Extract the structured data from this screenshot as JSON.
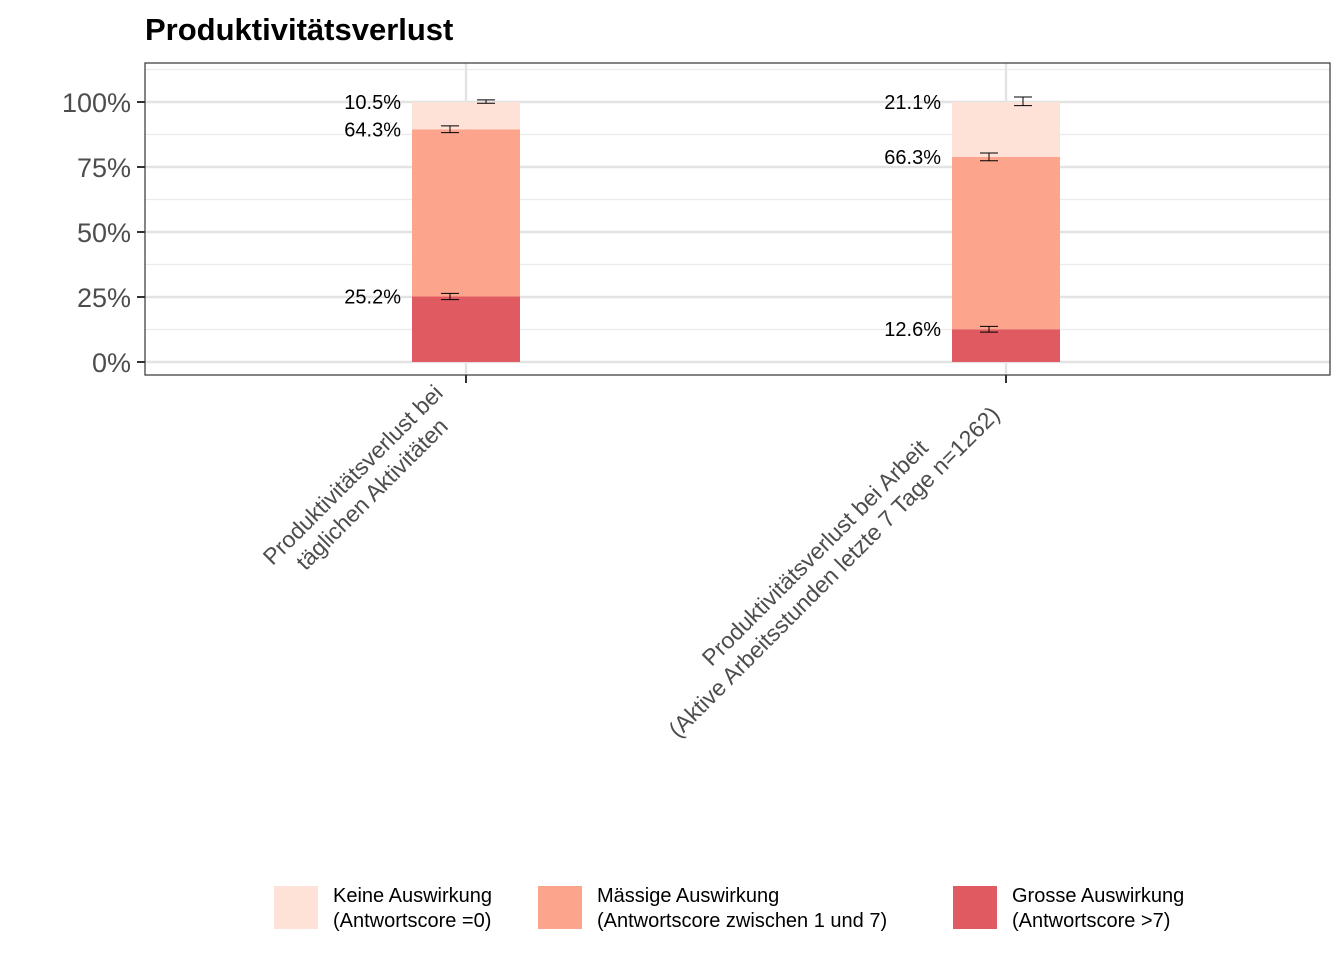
{
  "chart_data": {
    "type": "bar",
    "stacked": true,
    "title": "Produktivitätsverlust",
    "xlabel": "",
    "ylabel": "",
    "ylim": [
      -0.05,
      1.15
    ],
    "yticks": [
      0,
      0.25,
      0.5,
      0.75,
      1.0
    ],
    "ytick_labels": [
      "0%",
      "25%",
      "50%",
      "75%",
      "100%"
    ],
    "grid": true,
    "legend_position": "bottom",
    "categories": [
      [
        "Produktivitätsverlust bei",
        "täglichen Aktivitäten"
      ],
      [
        "Produktivitätsverlust bei Arbeit",
        "(Aktive Arbeitsstunden letzte 7 Tage n=1262)"
      ]
    ],
    "series": [
      {
        "name": [
          "Grosse Auswirkung",
          "(Antwortscore >7)"
        ],
        "color": "#e05b61",
        "values": [
          0.252,
          0.126
        ],
        "labels": [
          "25.2%",
          "12.6%"
        ],
        "error": [
          [
            0.24,
            0.264
          ],
          [
            0.115,
            0.137
          ]
        ]
      },
      {
        "name": [
          "Mässige Auswirkung",
          "(Antwortscore zwischen 1 und 7)"
        ],
        "color": "#fca58c",
        "values": [
          0.643,
          0.663
        ],
        "labels": [
          "64.3%",
          "66.3%"
        ],
        "error": [
          [
            0.882,
            0.908
          ],
          [
            0.774,
            0.804
          ]
        ]
      },
      {
        "name": [
          "Keine Auswirkung",
          "(Antwortscore =0)"
        ],
        "color": "#fee2d8",
        "values": [
          0.105,
          0.211
        ],
        "labels": [
          "10.5%",
          "21.1%"
        ],
        "error": [
          [
            0.995,
            1.008
          ],
          [
            0.986,
            1.019
          ]
        ]
      }
    ]
  }
}
